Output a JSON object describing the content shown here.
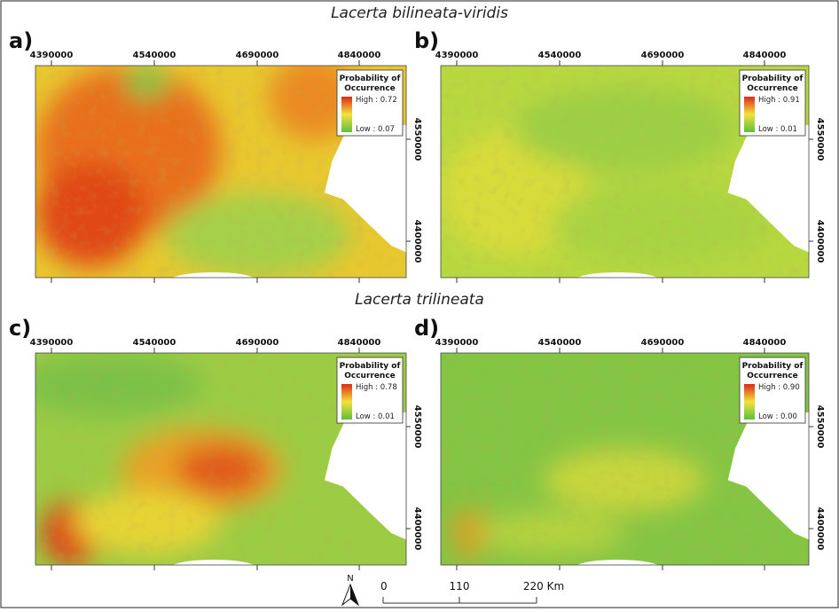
{
  "titles": [
    "Lacerta bilineata-viridis",
    "Lacerta trilineata"
  ],
  "panels": [
    {
      "label": "a)",
      "x_ticks": [
        "4390000",
        "4540000",
        "4690000",
        "4840000"
      ],
      "y_ticks": [
        "4550000",
        "4400000"
      ],
      "legend": {
        "title": "Probability of Occurrence",
        "high": "High : 0.72",
        "low": "Low : 0.07"
      }
    },
    {
      "label": "b)",
      "x_ticks": [
        "4390000",
        "4540000",
        "4690000",
        "4840000"
      ],
      "y_ticks": [
        "4550000",
        "4400000"
      ],
      "legend": {
        "title": "Probability of Occurrence",
        "high": "High : 0.91",
        "low": "Low : 0.01"
      }
    },
    {
      "label": "c)",
      "x_ticks": [
        "4390000",
        "4540000",
        "4690000",
        "4840000"
      ],
      "y_ticks": [
        "4550000",
        "4400000"
      ],
      "legend": {
        "title": "Probability of Occurrence",
        "high": "High : 0.78",
        "low": "Low : 0.01"
      }
    },
    {
      "label": "d)",
      "x_ticks": [
        "4390000",
        "4540000",
        "4690000",
        "4840000"
      ],
      "y_ticks": [
        "4550000",
        "4400000"
      ],
      "legend": {
        "title": "Probability of Occurrence",
        "high": "High : 0.90",
        "low": "Low : 0.00"
      }
    }
  ],
  "scale_bar": {
    "north": "N",
    "labels": [
      "0",
      "110",
      "220 Km"
    ]
  }
}
